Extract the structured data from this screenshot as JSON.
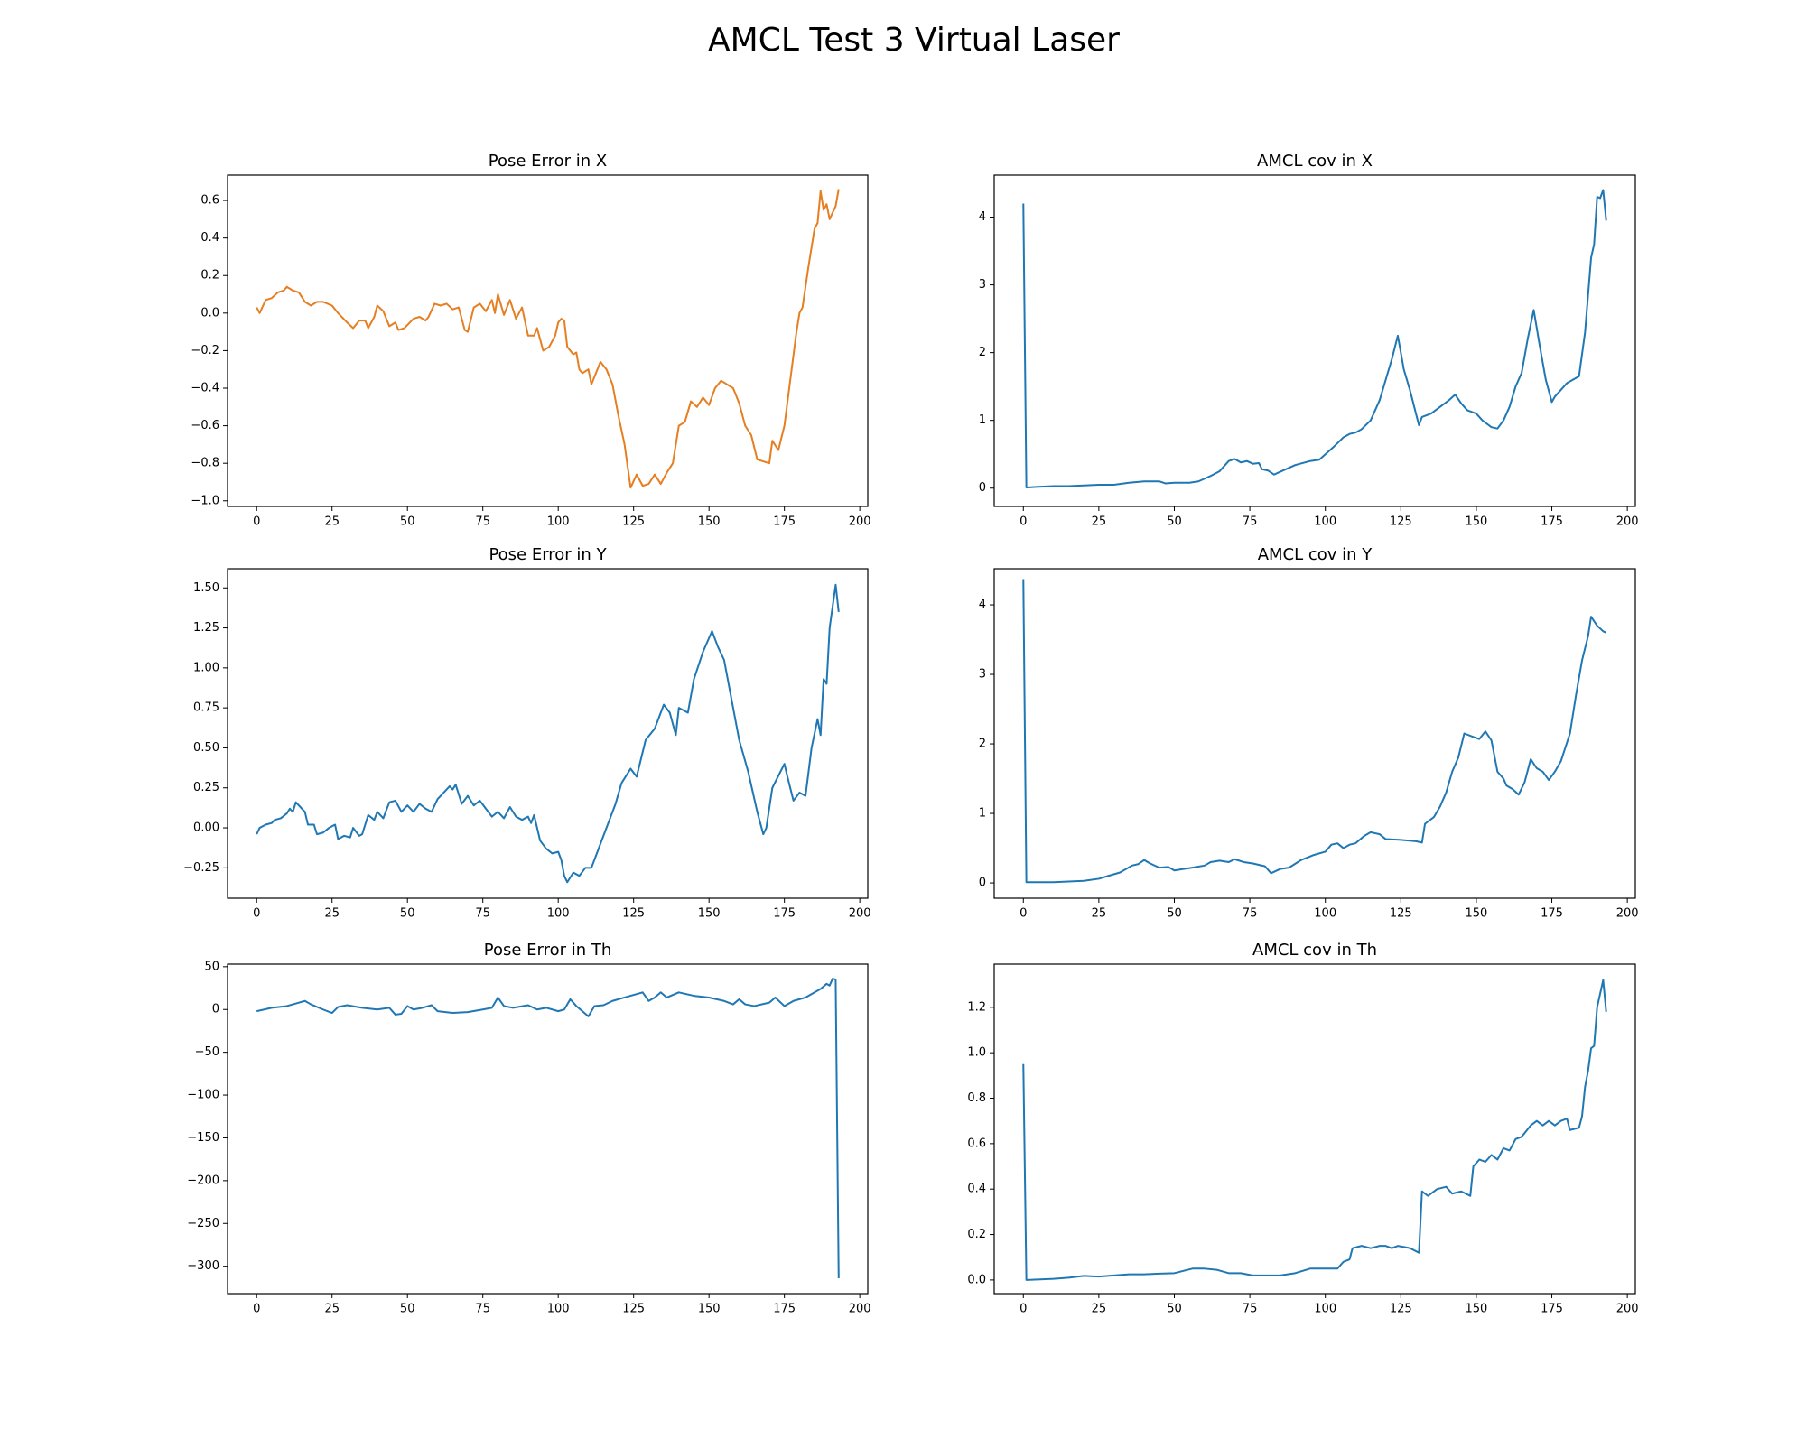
{
  "title": "AMCL Test 3 Virtual Laser",
  "chart_data": [
    {
      "type": "line",
      "title": "Pose Error in X",
      "x": [
        0,
        1,
        3,
        5,
        7,
        9,
        10,
        12,
        14,
        16,
        18,
        20,
        22,
        25,
        27,
        30,
        32,
        34,
        36,
        37,
        39,
        40,
        42,
        44,
        46,
        47,
        49,
        52,
        54,
        56,
        57,
        59,
        61,
        63,
        65,
        67,
        69,
        70,
        72,
        74,
        76,
        78,
        79,
        80,
        82,
        84,
        86,
        88,
        90,
        92,
        93,
        95,
        97,
        99,
        100,
        101,
        102,
        103,
        105,
        106,
        107,
        108,
        110,
        111,
        113,
        114,
        116,
        118,
        120,
        122,
        124,
        126,
        128,
        130,
        132,
        134,
        136,
        138,
        140,
        142,
        144,
        146,
        148,
        150,
        152,
        154,
        156,
        158,
        160,
        162,
        164,
        166,
        168,
        170,
        171,
        173,
        175,
        177,
        179,
        180,
        181,
        183,
        185,
        186,
        187,
        188,
        189,
        190,
        192,
        193
      ],
      "series": [
        {
          "color": "#e67e22",
          "values": [
            0.03,
            0.0,
            0.07,
            0.08,
            0.11,
            0.12,
            0.14,
            0.12,
            0.11,
            0.06,
            0.04,
            0.06,
            0.06,
            0.04,
            0.0,
            -0.05,
            -0.08,
            -0.04,
            -0.04,
            -0.08,
            -0.02,
            0.04,
            0.01,
            -0.07,
            -0.05,
            -0.09,
            -0.08,
            -0.03,
            -0.02,
            -0.04,
            -0.02,
            0.05,
            0.04,
            0.05,
            0.02,
            0.03,
            -0.09,
            -0.1,
            0.03,
            0.05,
            0.01,
            0.07,
            0.0,
            0.1,
            -0.01,
            0.07,
            -0.03,
            0.03,
            -0.12,
            -0.12,
            -0.08,
            -0.2,
            -0.18,
            -0.12,
            -0.05,
            -0.03,
            -0.04,
            -0.18,
            -0.22,
            -0.21,
            -0.3,
            -0.32,
            -0.3,
            -0.38,
            -0.3,
            -0.26,
            -0.3,
            -0.38,
            -0.55,
            -0.7,
            -0.93,
            -0.86,
            -0.92,
            -0.91,
            -0.86,
            -0.91,
            -0.85,
            -0.8,
            -0.6,
            -0.58,
            -0.47,
            -0.5,
            -0.45,
            -0.49,
            -0.4,
            -0.36,
            -0.38,
            -0.4,
            -0.48,
            -0.6,
            -0.65,
            -0.78,
            -0.79,
            -0.8,
            -0.68,
            -0.73,
            -0.6,
            -0.35,
            -0.1,
            0.0,
            0.03,
            0.25,
            0.45,
            0.48,
            0.65,
            0.55,
            0.58,
            0.5,
            0.57,
            0.66
          ]
        }
      ],
      "xlim": [
        -9.65,
        202.65
      ],
      "xticks": [
        0,
        25,
        50,
        75,
        100,
        125,
        150,
        175,
        200
      ],
      "ylim": [
        -1.03,
        0.735
      ],
      "yticks": [
        {
          "value": -1,
          "label": "−1.0"
        },
        {
          "value": -0.8,
          "label": "−0.8"
        },
        {
          "value": -0.6,
          "label": "−0.6"
        },
        {
          "value": -0.4,
          "label": "−0.4"
        },
        {
          "value": -0.2,
          "label": "−0.2"
        },
        {
          "value": 0,
          "label": "0.0"
        },
        0.2,
        0.4,
        0.6
      ]
    },
    {
      "type": "line",
      "title": "AMCL cov in X",
      "x": [
        0,
        1,
        5,
        10,
        15,
        20,
        25,
        30,
        35,
        40,
        45,
        47,
        50,
        55,
        58,
        62,
        65,
        68,
        70,
        72,
        74,
        76,
        78,
        79,
        81,
        83,
        85,
        87,
        90,
        95,
        98,
        100,
        103,
        106,
        108,
        110,
        112,
        115,
        118,
        120,
        122,
        124,
        126,
        128,
        130,
        131,
        132,
        135,
        138,
        141,
        143,
        145,
        147,
        150,
        152,
        155,
        157,
        159,
        161,
        163,
        165,
        167,
        169,
        171,
        173,
        175,
        176,
        178,
        180,
        182,
        184,
        186,
        188,
        189,
        190,
        191,
        192,
        193
      ],
      "series": [
        {
          "color": "#1f77b4",
          "values": [
            4.2,
            0.01,
            0.02,
            0.03,
            0.03,
            0.04,
            0.05,
            0.05,
            0.08,
            0.1,
            0.1,
            0.07,
            0.08,
            0.08,
            0.1,
            0.18,
            0.25,
            0.4,
            0.43,
            0.38,
            0.4,
            0.36,
            0.37,
            0.28,
            0.26,
            0.2,
            0.24,
            0.28,
            0.34,
            0.4,
            0.42,
            0.5,
            0.62,
            0.75,
            0.8,
            0.82,
            0.87,
            1.0,
            1.3,
            1.6,
            1.9,
            2.25,
            1.75,
            1.45,
            1.1,
            0.93,
            1.05,
            1.1,
            1.2,
            1.3,
            1.38,
            1.25,
            1.15,
            1.1,
            1.0,
            0.9,
            0.88,
            1.0,
            1.2,
            1.5,
            1.7,
            2.2,
            2.63,
            2.1,
            1.6,
            1.27,
            1.35,
            1.45,
            1.55,
            1.6,
            1.65,
            2.3,
            3.4,
            3.6,
            4.3,
            4.28,
            4.4,
            3.95
          ]
        }
      ],
      "xlim": [
        -9.65,
        202.65
      ],
      "xticks": [
        0,
        25,
        50,
        75,
        100,
        125,
        150,
        175,
        200
      ],
      "ylim": [
        -0.27,
        4.62
      ],
      "yticks": [
        0,
        1,
        2,
        3,
        4
      ]
    },
    {
      "type": "line",
      "title": "Pose Error in Y",
      "x": [
        0,
        1,
        3,
        5,
        6,
        8,
        10,
        11,
        12,
        13,
        15,
        16,
        17,
        19,
        20,
        22,
        24,
        26,
        27,
        29,
        31,
        32,
        34,
        35,
        37,
        39,
        40,
        42,
        44,
        46,
        48,
        50,
        52,
        54,
        56,
        58,
        60,
        62,
        64,
        65,
        66,
        68,
        70,
        72,
        74,
        76,
        78,
        80,
        82,
        84,
        86,
        88,
        90,
        91,
        92,
        94,
        96,
        98,
        100,
        101,
        102,
        103,
        105,
        107,
        109,
        111,
        113,
        115,
        117,
        119,
        121,
        124,
        126,
        129,
        132,
        135,
        137,
        139,
        140,
        143,
        145,
        148,
        151,
        153,
        155,
        158,
        160,
        163,
        166,
        168,
        169,
        171,
        175,
        176,
        178,
        180,
        182,
        184,
        186,
        187,
        188,
        189,
        190,
        192,
        193
      ],
      "series": [
        {
          "color": "#1f77b4",
          "values": [
            -0.04,
            0.0,
            0.02,
            0.03,
            0.05,
            0.06,
            0.09,
            0.12,
            0.1,
            0.16,
            0.12,
            0.1,
            0.02,
            0.02,
            -0.04,
            -0.03,
            0.0,
            0.02,
            -0.07,
            -0.05,
            -0.06,
            0.0,
            -0.05,
            -0.04,
            0.08,
            0.05,
            0.1,
            0.06,
            0.16,
            0.17,
            0.1,
            0.14,
            0.1,
            0.15,
            0.12,
            0.1,
            0.18,
            0.22,
            0.26,
            0.24,
            0.27,
            0.15,
            0.2,
            0.14,
            0.17,
            0.12,
            0.07,
            0.1,
            0.06,
            0.13,
            0.07,
            0.05,
            0.07,
            0.03,
            0.08,
            -0.08,
            -0.13,
            -0.16,
            -0.15,
            -0.2,
            -0.3,
            -0.34,
            -0.28,
            -0.3,
            -0.25,
            -0.25,
            -0.15,
            -0.05,
            0.05,
            0.15,
            0.28,
            0.37,
            0.32,
            0.55,
            0.62,
            0.77,
            0.72,
            0.58,
            0.75,
            0.72,
            0.93,
            1.1,
            1.23,
            1.13,
            1.05,
            0.75,
            0.55,
            0.35,
            0.1,
            -0.04,
            0.0,
            0.25,
            0.4,
            0.32,
            0.17,
            0.22,
            0.2,
            0.5,
            0.68,
            0.58,
            0.93,
            0.9,
            1.25,
            1.52,
            1.35
          ]
        }
      ],
      "xlim": [
        -9.65,
        202.65
      ],
      "xticks": [
        0,
        25,
        50,
        75,
        100,
        125,
        150,
        175,
        200
      ],
      "ylim": [
        -0.44,
        1.62
      ],
      "yticks": [
        {
          "value": -0.25,
          "label": "−0.25"
        },
        {
          "value": 0,
          "label": "0.00"
        },
        0.25,
        {
          "value": 0.5,
          "label": "0.50"
        },
        0.75,
        {
          "value": 1,
          "label": "1.00"
        },
        1.25,
        {
          "value": 1.5,
          "label": "1.50"
        }
      ]
    },
    {
      "type": "line",
      "title": "AMCL cov in Y",
      "x": [
        0,
        1,
        10,
        15,
        20,
        25,
        28,
        32,
        36,
        38,
        40,
        42,
        45,
        48,
        50,
        53,
        56,
        60,
        62,
        65,
        68,
        70,
        73,
        76,
        80,
        82,
        85,
        88,
        92,
        96,
        100,
        102,
        104,
        106,
        108,
        110,
        113,
        115,
        118,
        120,
        125,
        130,
        132,
        133,
        136,
        138,
        140,
        142,
        144,
        146,
        149,
        151,
        153,
        155,
        157,
        159,
        160,
        162,
        164,
        166,
        168,
        170,
        172,
        174,
        176,
        178,
        181,
        183,
        185,
        187,
        188,
        190,
        192,
        193
      ],
      "series": [
        {
          "color": "#1f77b4",
          "values": [
            4.37,
            0.01,
            0.01,
            0.02,
            0.03,
            0.06,
            0.1,
            0.15,
            0.25,
            0.27,
            0.33,
            0.28,
            0.22,
            0.23,
            0.18,
            0.2,
            0.22,
            0.25,
            0.3,
            0.32,
            0.3,
            0.34,
            0.3,
            0.28,
            0.24,
            0.14,
            0.2,
            0.22,
            0.33,
            0.4,
            0.45,
            0.55,
            0.57,
            0.5,
            0.55,
            0.57,
            0.68,
            0.73,
            0.7,
            0.63,
            0.62,
            0.6,
            0.58,
            0.85,
            0.95,
            1.1,
            1.3,
            1.6,
            1.8,
            2.15,
            2.1,
            2.07,
            2.18,
            2.05,
            1.6,
            1.5,
            1.4,
            1.35,
            1.27,
            1.45,
            1.78,
            1.65,
            1.6,
            1.48,
            1.6,
            1.75,
            2.15,
            2.7,
            3.2,
            3.55,
            3.83,
            3.7,
            3.62,
            3.6
          ]
        }
      ],
      "xlim": [
        -9.65,
        202.65
      ],
      "xticks": [
        0,
        25,
        50,
        75,
        100,
        125,
        150,
        175,
        200
      ],
      "ylim": [
        -0.22,
        4.52
      ],
      "yticks": [
        0,
        1,
        2,
        3,
        4
      ]
    },
    {
      "type": "line",
      "title": "Pose Error in Th",
      "x": [
        0,
        5,
        10,
        14,
        16,
        18,
        22,
        25,
        27,
        30,
        35,
        40,
        44,
        46,
        48,
        50,
        52,
        55,
        58,
        60,
        65,
        70,
        75,
        78,
        80,
        82,
        85,
        90,
        93,
        96,
        100,
        102,
        104,
        106,
        108,
        110,
        112,
        115,
        118,
        122,
        126,
        128,
        130,
        132,
        134,
        136,
        140,
        145,
        150,
        155,
        158,
        160,
        162,
        165,
        170,
        172,
        175,
        178,
        182,
        185,
        187,
        189,
        190,
        191,
        192,
        193
      ],
      "series": [
        {
          "color": "#1f77b4",
          "values": [
            -2,
            2,
            4,
            8,
            10,
            6,
            0,
            -4,
            3,
            5,
            2,
            0,
            2,
            -6,
            -5,
            4,
            0,
            2,
            5,
            -2,
            -4,
            -3,
            0,
            2,
            14,
            4,
            2,
            5,
            0,
            2,
            -2,
            0,
            12,
            4,
            -2,
            -8,
            4,
            5,
            10,
            14,
            18,
            20,
            10,
            14,
            20,
            14,
            20,
            16,
            14,
            10,
            6,
            12,
            6,
            4,
            8,
            14,
            4,
            10,
            14,
            20,
            24,
            30,
            28,
            36,
            35,
            -314
          ]
        }
      ],
      "xlim": [
        -9.65,
        202.65
      ],
      "xticks": [
        0,
        25,
        50,
        75,
        100,
        125,
        150,
        175,
        200
      ],
      "ylim": [
        -332,
        53
      ],
      "yticks": [
        50,
        0,
        {
          "value": -50,
          "label": "−50"
        },
        {
          "value": -100,
          "label": "−100"
        },
        {
          "value": -150,
          "label": "−150"
        },
        {
          "value": -200,
          "label": "−200"
        },
        {
          "value": -250,
          "label": "−250"
        },
        {
          "value": -300,
          "label": "−300"
        }
      ]
    },
    {
      "type": "line",
      "title": "AMCL cov in Th",
      "x": [
        0,
        1,
        10,
        15,
        20,
        25,
        30,
        35,
        40,
        45,
        50,
        53,
        56,
        60,
        64,
        68,
        72,
        76,
        80,
        85,
        90,
        95,
        100,
        104,
        106,
        108,
        109,
        112,
        115,
        118,
        120,
        122,
        124,
        128,
        131,
        132,
        134,
        137,
        140,
        142,
        145,
        148,
        149,
        151,
        153,
        155,
        157,
        159,
        161,
        163,
        165,
        168,
        170,
        172,
        174,
        176,
        178,
        180,
        181,
        184,
        185,
        186,
        187,
        188,
        189,
        190,
        192,
        193
      ],
      "series": [
        {
          "color": "#1f77b4",
          "values": [
            0.95,
            0.0,
            0.005,
            0.01,
            0.018,
            0.015,
            0.02,
            0.025,
            0.025,
            0.028,
            0.03,
            0.04,
            0.05,
            0.05,
            0.045,
            0.03,
            0.03,
            0.02,
            0.02,
            0.02,
            0.03,
            0.05,
            0.05,
            0.05,
            0.08,
            0.09,
            0.14,
            0.15,
            0.14,
            0.15,
            0.15,
            0.14,
            0.15,
            0.14,
            0.12,
            0.39,
            0.37,
            0.4,
            0.41,
            0.38,
            0.39,
            0.37,
            0.5,
            0.53,
            0.52,
            0.55,
            0.53,
            0.58,
            0.57,
            0.62,
            0.63,
            0.68,
            0.7,
            0.68,
            0.7,
            0.68,
            0.7,
            0.71,
            0.66,
            0.67,
            0.72,
            0.85,
            0.92,
            1.02,
            1.03,
            1.2,
            1.32,
            1.18
          ]
        }
      ],
      "xlim": [
        -9.65,
        202.65
      ],
      "xticks": [
        0,
        25,
        50,
        75,
        100,
        125,
        150,
        175,
        200
      ],
      "ylim": [
        -0.06,
        1.39
      ],
      "yticks": [
        {
          "value": 0,
          "label": "0.0"
        },
        0.2,
        0.4,
        0.6,
        0.8,
        {
          "value": 1,
          "label": "1.0"
        },
        1.2
      ]
    }
  ]
}
